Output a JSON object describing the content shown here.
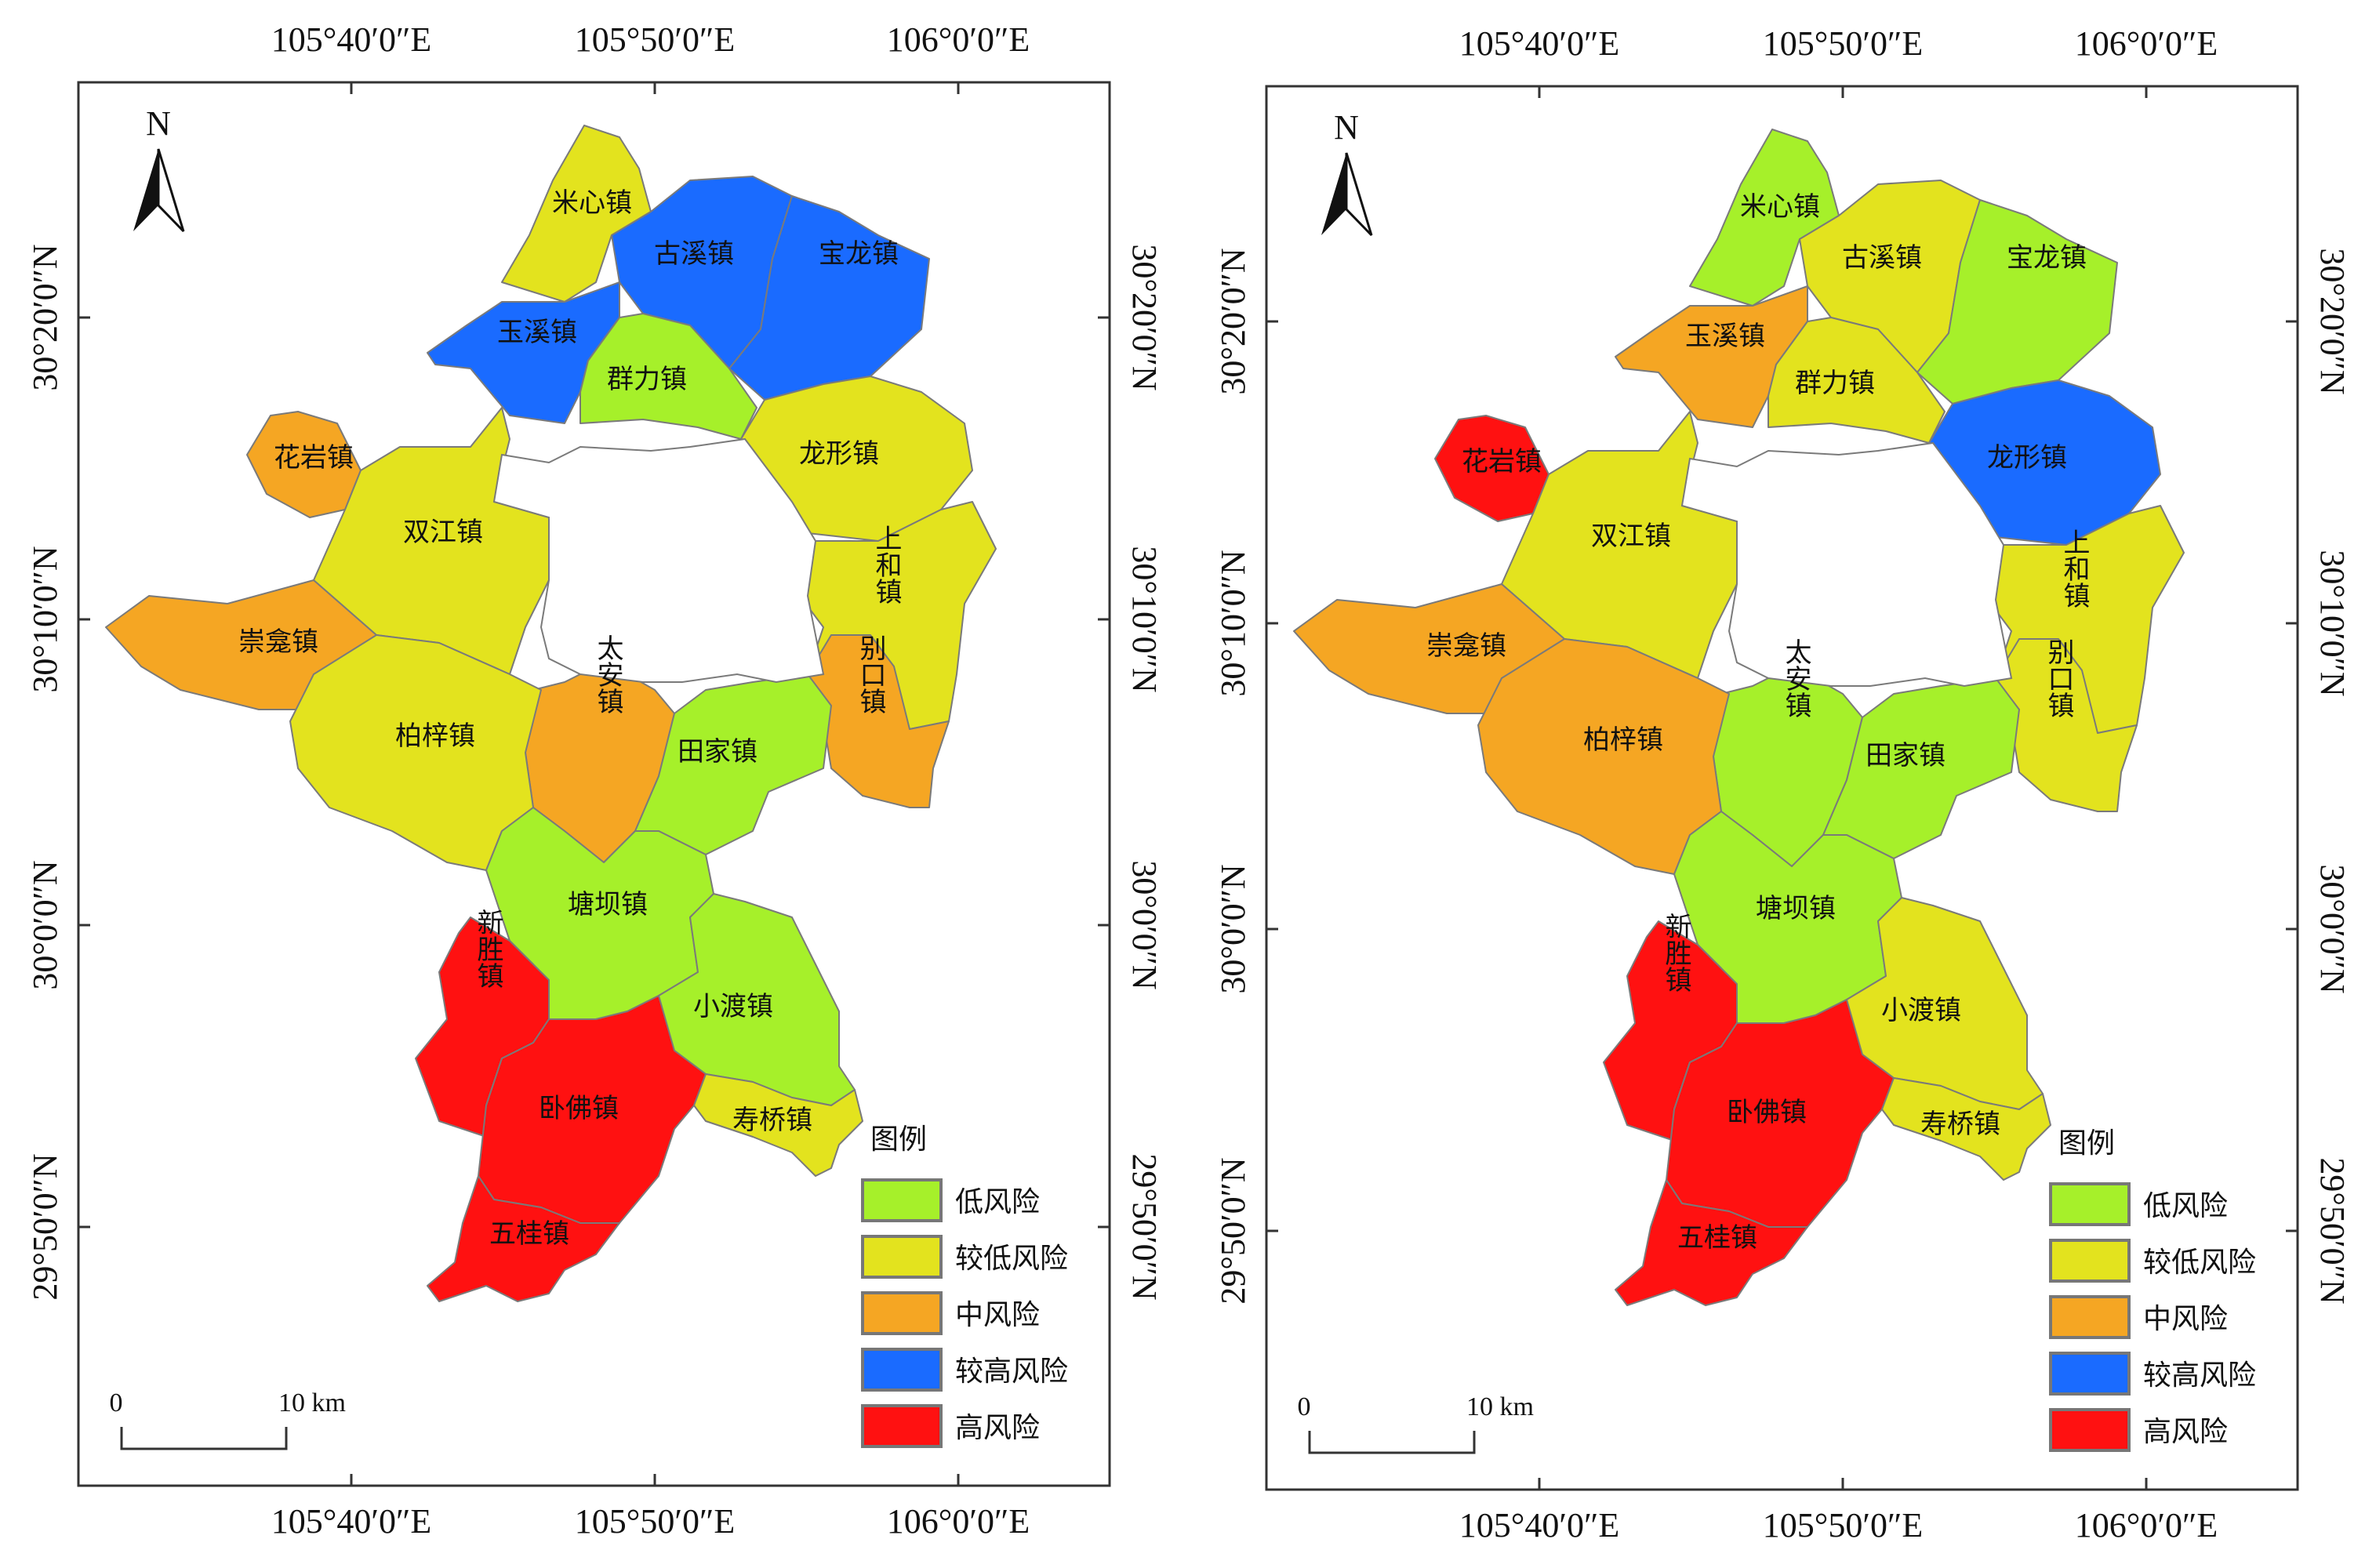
{
  "legend": {
    "title": "图例",
    "items": [
      {
        "label": "低风险",
        "color": "#a6f02a"
      },
      {
        "label": "较低风险",
        "color": "#e3e31e"
      },
      {
        "label": "中风险",
        "color": "#f5a623"
      },
      {
        "label": "较高风险",
        "color": "#1a6bff"
      },
      {
        "label": "高风险",
        "color": "#ff1111"
      }
    ]
  },
  "axes": {
    "top_lon": [
      "105°40′0″E",
      "105°50′0″E",
      "106°0′0″E"
    ],
    "bottom_lon": [
      "105°40′0″E",
      "105°50′0″E",
      "106°0′0″E"
    ],
    "lat": [
      "30°20′0″N",
      "30°10′0″N",
      "30°0′0″N",
      "29°50′0″N"
    ]
  },
  "north_label": "N",
  "scale_bar": {
    "start": "0",
    "end": "10 km"
  },
  "towns": {
    "mixin": "米心镇",
    "guxi": "古溪镇",
    "baolong": "宝龙镇",
    "yuxi": "玉溪镇",
    "qunli": "群力镇",
    "huayan": "花岩镇",
    "longxing": "龙形镇",
    "shuangjiang": "双江镇",
    "shanghe": "上和镇",
    "chongkan": "崇龛镇",
    "biekou": "别口镇",
    "taian": "太安镇",
    "tianjia": "田家镇",
    "baizi": "柏梓镇",
    "tangba": "塘坝镇",
    "xinsheng": "新胜镇",
    "xiaodu": "小渡镇",
    "wofo": "卧佛镇",
    "shouqiao": "寿桥镇",
    "wugui": "五桂镇"
  },
  "maps": [
    {
      "risk": {
        "mixin": "较低风险",
        "guxi": "较高风险",
        "baolong": "较高风险",
        "yuxi": "较高风险",
        "qunli": "低风险",
        "huayan": "中风险",
        "longxing": "较低风险",
        "shuangjiang": "较低风险",
        "shanghe": "较低风险",
        "chongkan": "中风险",
        "biekou": "中风险",
        "taian": "中风险",
        "tianjia": "低风险",
        "baizi": "较低风险",
        "tangba": "低风险",
        "xinsheng": "高风险",
        "xiaodu": "低风险",
        "wofo": "高风险",
        "shouqiao": "较低风险",
        "wugui": "高风险"
      }
    },
    {
      "risk": {
        "mixin": "低风险",
        "guxi": "较低风险",
        "baolong": "低风险",
        "yuxi": "中风险",
        "qunli": "较低风险",
        "huayan": "高风险",
        "longxing": "较高风险",
        "shuangjiang": "较低风险",
        "shanghe": "较低风险",
        "chongkan": "中风险",
        "biekou": "较低风险",
        "taian": "低风险",
        "tianjia": "低风险",
        "baizi": "中风险",
        "tangba": "低风险",
        "xinsheng": "高风险",
        "xiaodu": "较低风险",
        "wofo": "高风险",
        "shouqiao": "较低风险",
        "wugui": "高风险"
      }
    }
  ]
}
